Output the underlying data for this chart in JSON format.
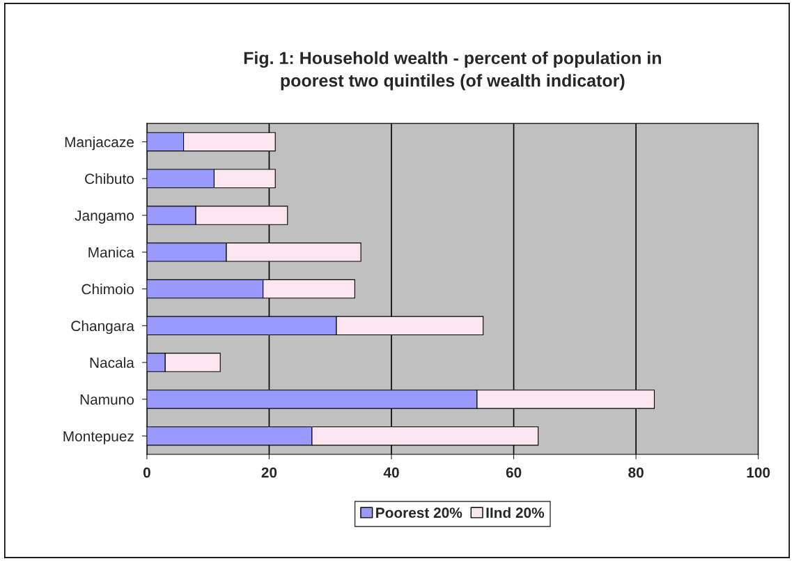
{
  "chart_data": {
    "type": "bar",
    "orientation": "horizontal",
    "stacked": true,
    "title": "Fig. 1: Household wealth - percent of population in\npoorest two quintiles (of wealth indicator)",
    "categories": [
      "Manjacaze",
      "Chibuto",
      "Jangamo",
      "Manica",
      "Chimoio",
      "Changara",
      "Nacala",
      "Namuno",
      "Montepuez"
    ],
    "series": [
      {
        "name": "Poorest 20%",
        "color": "#9999ff",
        "values": [
          6,
          11,
          8,
          13,
          19,
          31,
          3,
          54,
          27
        ]
      },
      {
        "name": "IInd 20%",
        "color": "#fbe6f0",
        "values": [
          15,
          10,
          15,
          22,
          15,
          24,
          9,
          29,
          37
        ]
      }
    ],
    "xlim": [
      0,
      100
    ],
    "xticks": [
      0,
      20,
      40,
      60,
      80,
      100
    ],
    "grid": "x",
    "legend": "bottom"
  }
}
